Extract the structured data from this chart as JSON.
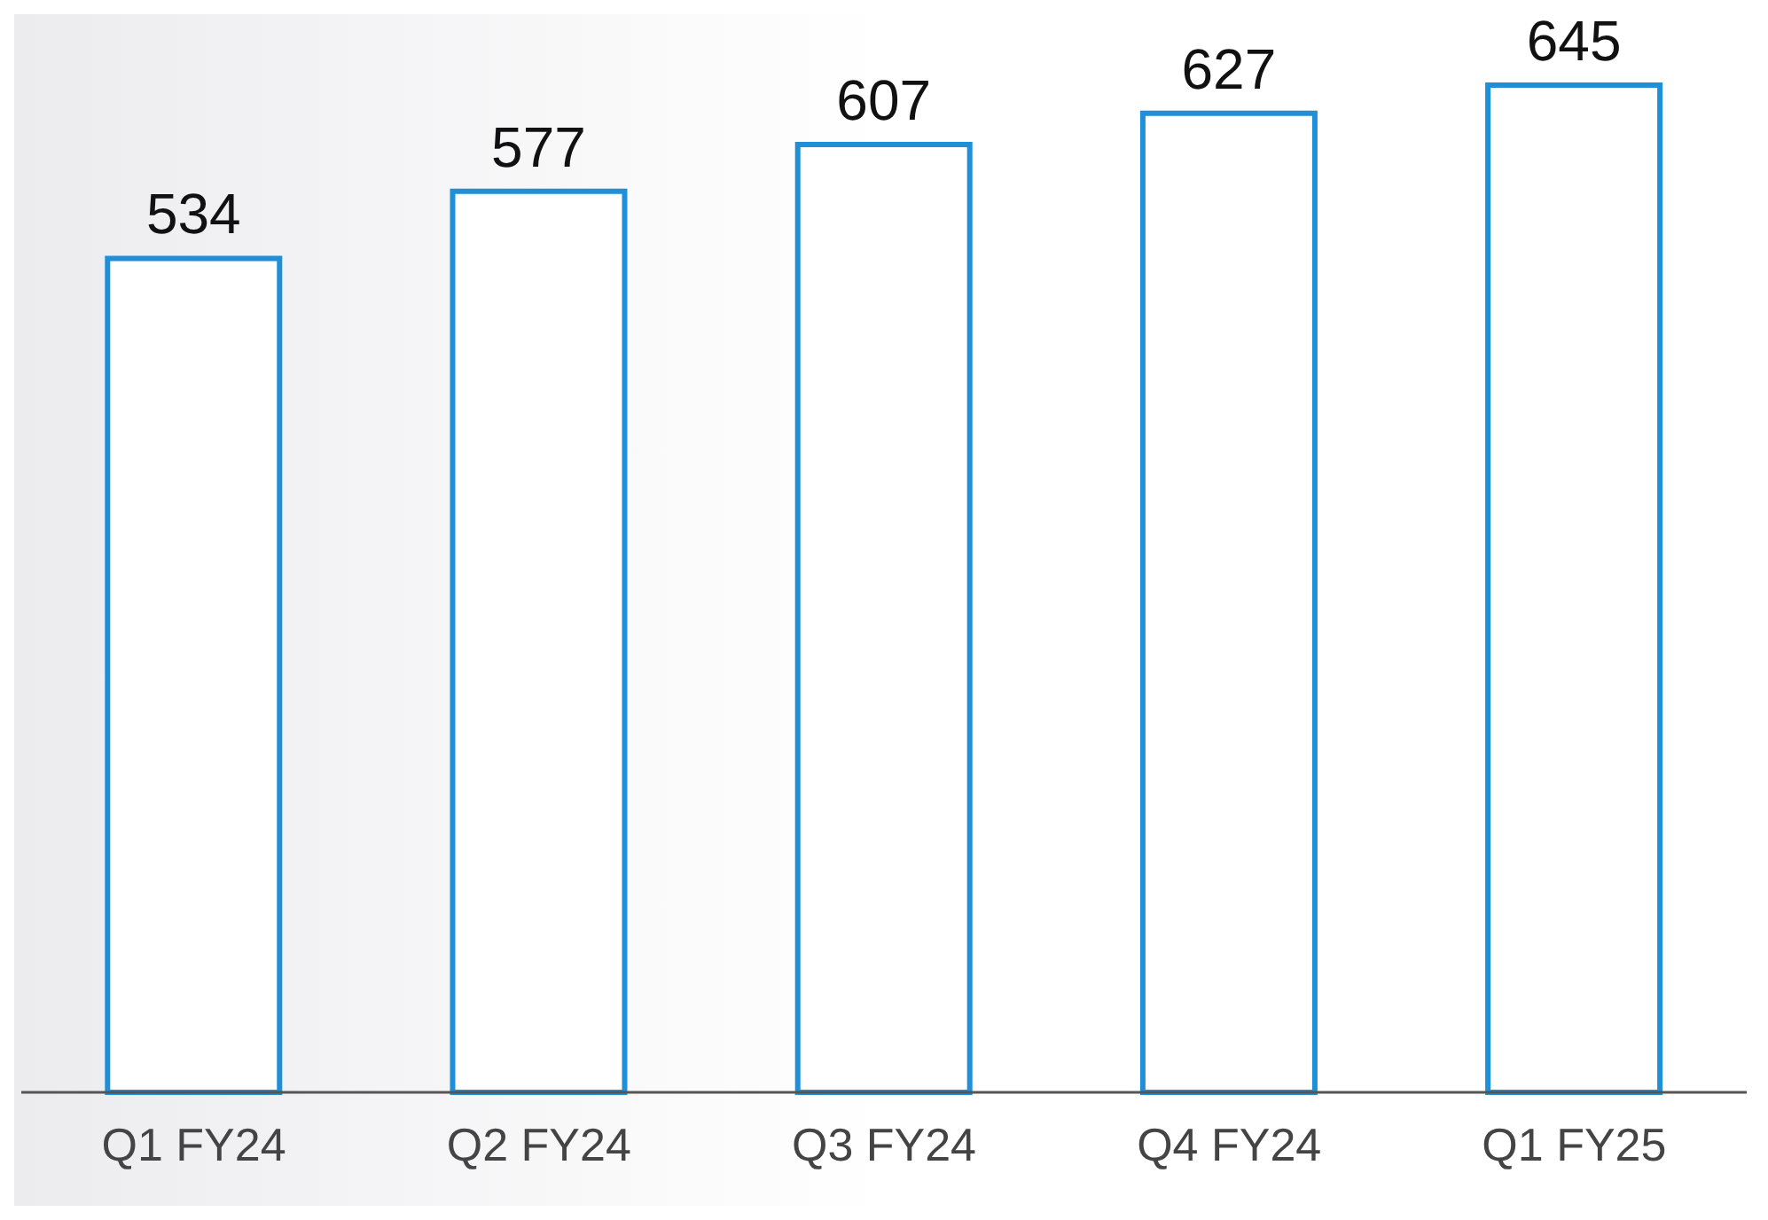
{
  "chart_data": {
    "type": "bar",
    "categories": [
      "Q1 FY24",
      "Q2 FY24",
      "Q3 FY24",
      "Q4 FY24",
      "Q1 FY25"
    ],
    "values": [
      534,
      577,
      607,
      627,
      645
    ],
    "color": "#1f8fd8",
    "data_labels": true,
    "grid": false,
    "legend": false
  }
}
